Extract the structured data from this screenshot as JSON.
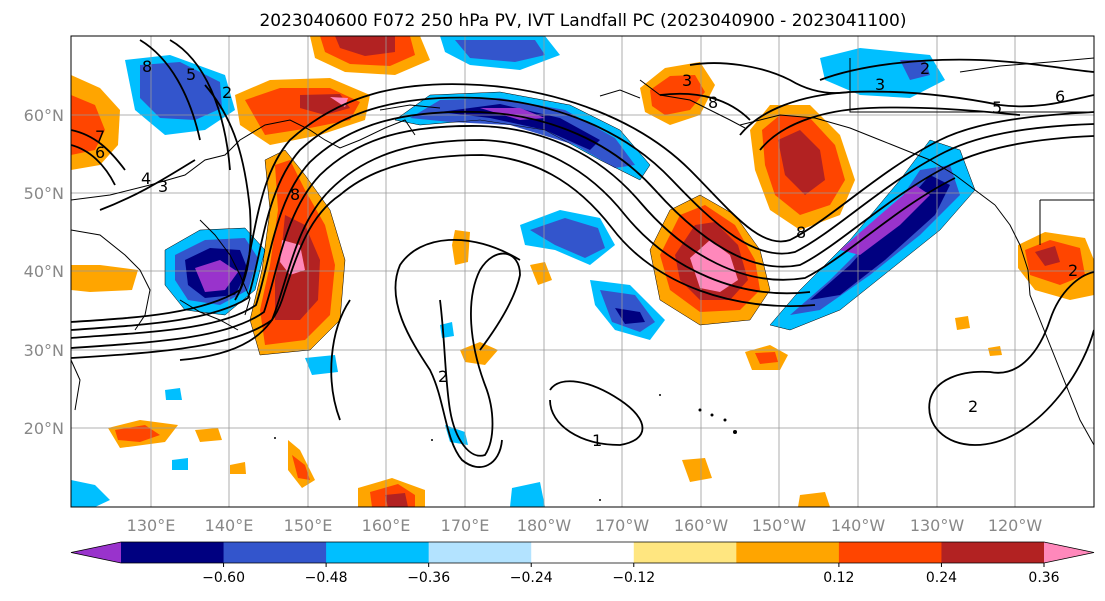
{
  "title": "2023040600 F072 250 hPa PV, IVT Landfall PC (2023040900 - 2023041100)",
  "lat_labels": [
    "60°N",
    "50°N",
    "40°N",
    "30°N",
    "20°N"
  ],
  "lon_labels": [
    "130°E",
    "140°E",
    "150°E",
    "160°E",
    "170°E",
    "180°W",
    "170°W",
    "160°W",
    "150°W",
    "140°W",
    "130°W",
    "120°W"
  ],
  "colorbar": {
    "ticks": [
      "−0.60",
      "−0.48",
      "−0.36",
      "−0.24",
      "−0.12",
      "0.12",
      "0.24",
      "0.36",
      "0.48",
      "0.60"
    ],
    "colors": [
      "#9933cc",
      "#000080",
      "#3355cc",
      "#00bfff",
      "#b3e3ff",
      "#ffffff",
      "#ffe680",
      "#ffa500",
      "#ff4500",
      "#b22222",
      "#ff88bb"
    ]
  },
  "contour_labels": [
    "8",
    "5",
    "2",
    "7",
    "6",
    "4",
    "3",
    "8",
    "2",
    "1",
    "3",
    "2",
    "3",
    "5",
    "6",
    "8",
    "8",
    "2",
    "2"
  ]
}
